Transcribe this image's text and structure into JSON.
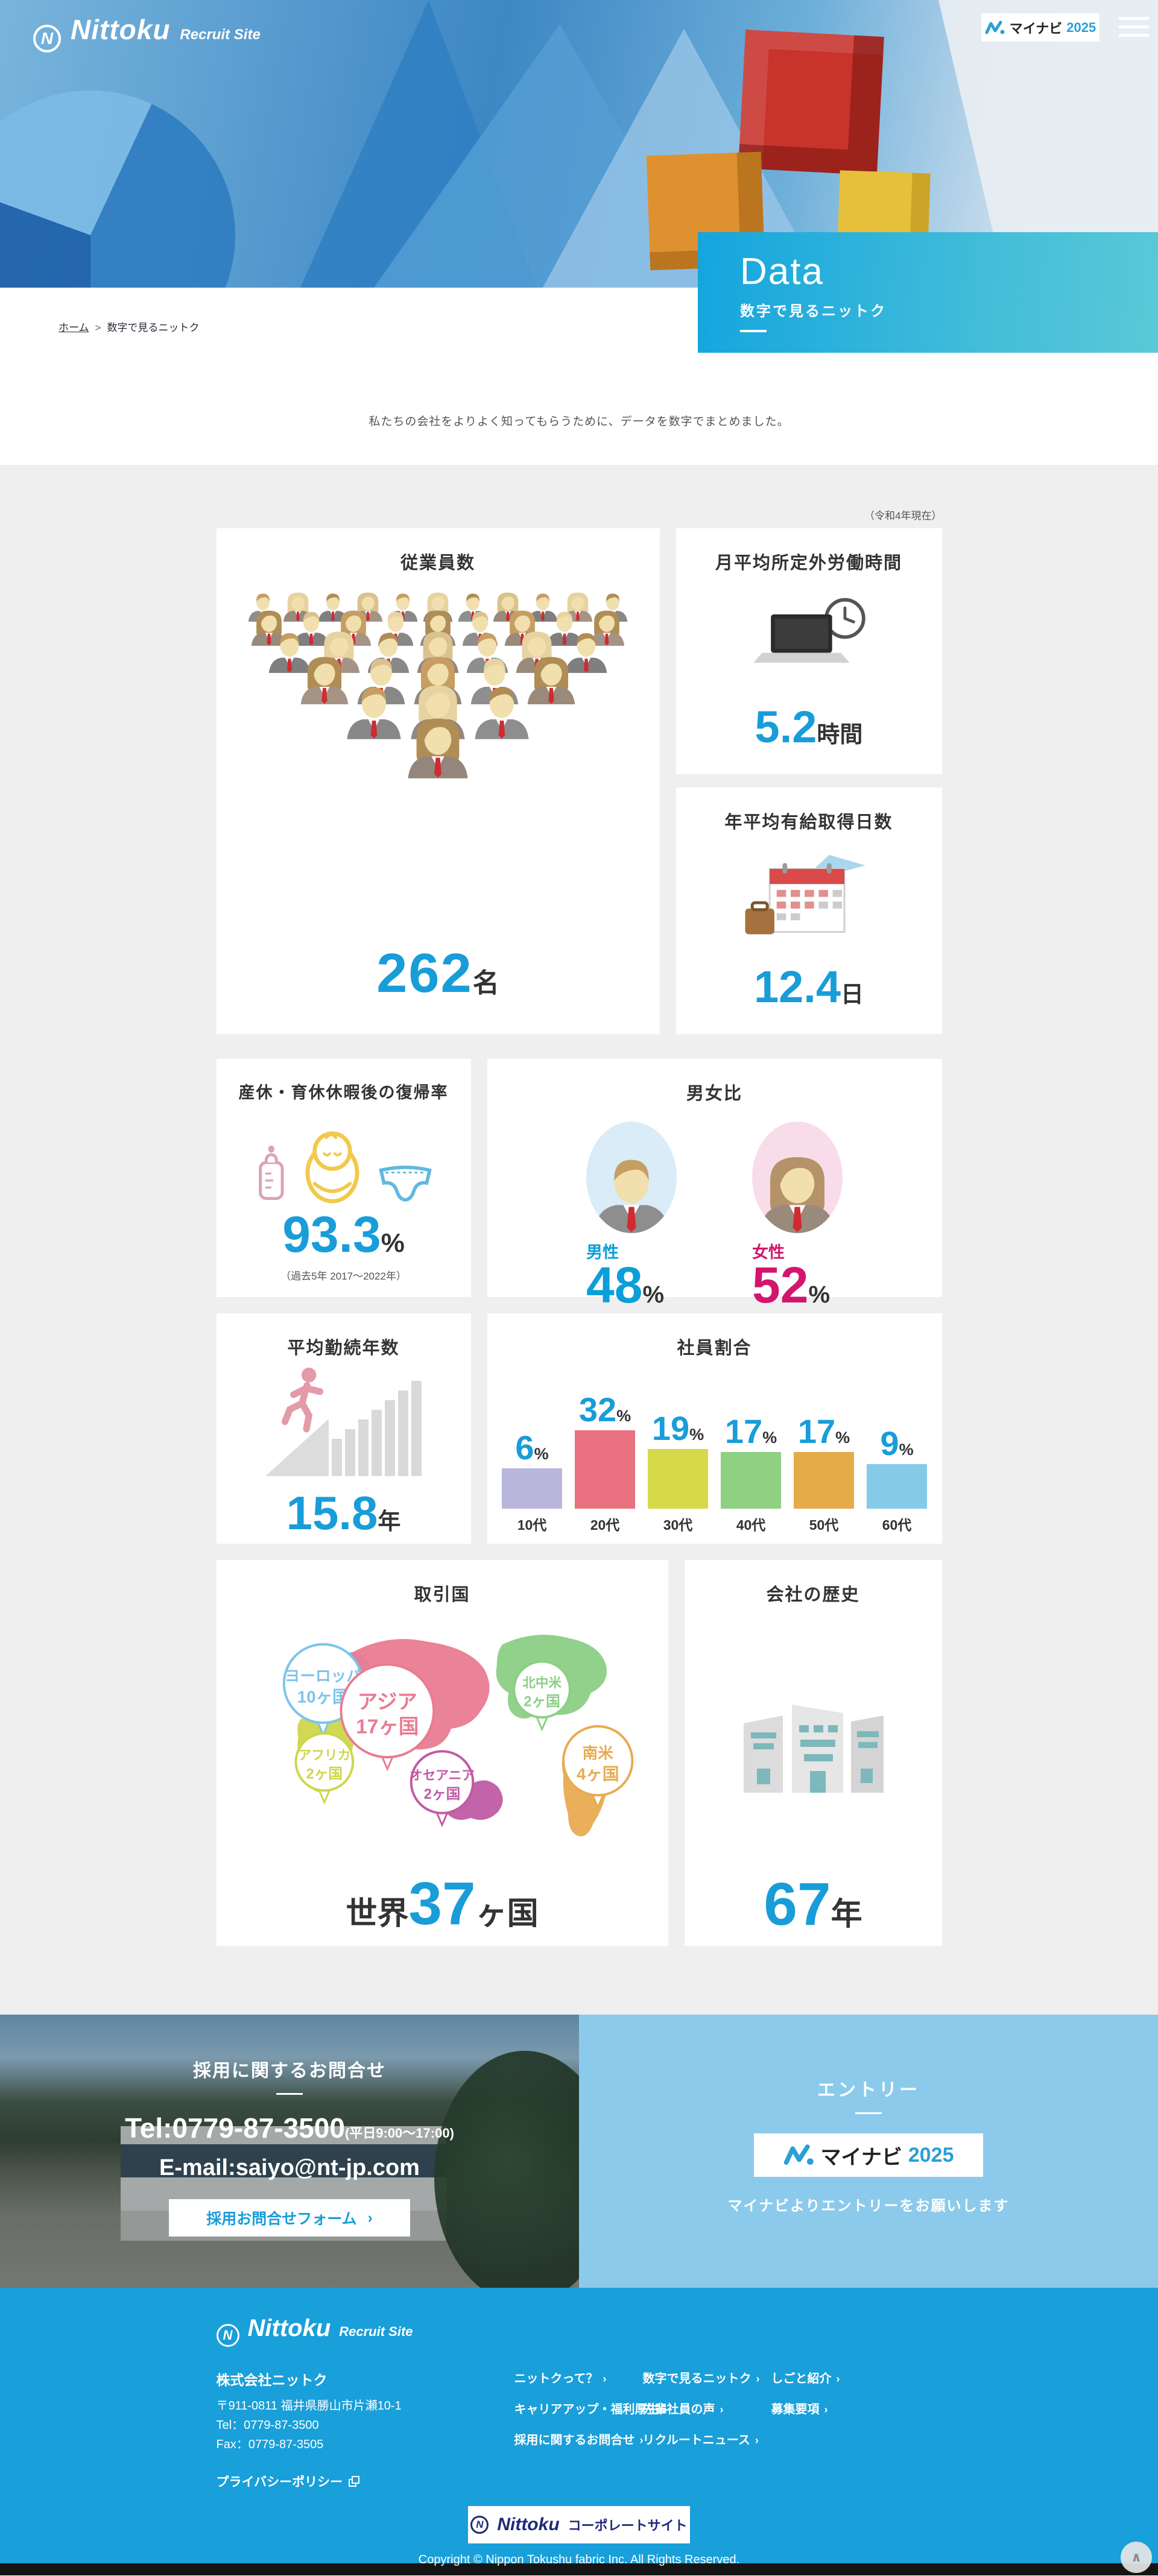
{
  "header": {
    "logo": "Nittoku",
    "logo_sub": "Recruit Site",
    "emblem": "N",
    "mynavi_badge": {
      "brand": "マイナビ",
      "year": "2025"
    }
  },
  "hero": {
    "title": "Data",
    "subtitle": "数字で見るニットク"
  },
  "breadcrumb": {
    "home": "ホーム",
    "separator": ">",
    "current": "数字で見るニットク"
  },
  "intro": "私たちの会社をよりよく知ってもらうために、データを数字でまとめました。",
  "stats_note": "（令和4年現在）",
  "cards": {
    "employees": {
      "title": "従業員数",
      "value": "262",
      "unit": "名",
      "pyramid_rows": [
        11,
        9,
        7,
        5,
        3,
        1
      ]
    },
    "overtime": {
      "title": "月平均所定外労働時間",
      "value": "5.2",
      "unit": "時間"
    },
    "paid_leave": {
      "title": "年平均有給取得日数",
      "value": "12.4",
      "unit": "日"
    },
    "return_rate": {
      "title": "産休・育休休暇後の復帰率",
      "value": "93.3",
      "unit": "%",
      "note": "（過去5年 2017〜2022年）"
    },
    "gender": {
      "title": "男女比",
      "male_label": "男性",
      "male_value": "48",
      "female_label": "女性",
      "female_value": "52",
      "percent": "%"
    },
    "tenure": {
      "title": "平均勤続年数",
      "value": "15.8",
      "unit": "年"
    },
    "age_ratio": {
      "title": "社員割合"
    },
    "countries": {
      "title": "取引国",
      "total_prefix": "世界",
      "total_value": "37",
      "total_suffix": "ヶ国"
    },
    "history": {
      "title": "会社の歴史",
      "value": "67",
      "unit": "年"
    }
  },
  "chart_data": [
    {
      "type": "bar",
      "title": "社員割合",
      "categories": [
        "10代",
        "20代",
        "30代",
        "40代",
        "50代",
        "60代"
      ],
      "values": [
        6,
        32,
        19,
        17,
        17,
        9
      ],
      "unit": "%",
      "colors": [
        "#b9b6dc",
        "#e9707f",
        "#d5d94a",
        "#8fd083",
        "#e6ab49",
        "#85cbe9"
      ],
      "value_color": "#189dd9",
      "ylabel": "",
      "xlabel": "",
      "grid": false,
      "legend": "none"
    },
    {
      "type": "map",
      "title": "取引国",
      "regions": [
        {
          "name": "ヨーロッパ",
          "count": "10ヶ国",
          "color": "#7cc4ea"
        },
        {
          "name": "アジア",
          "count": "17ヶ国",
          "color": "#e97b92"
        },
        {
          "name": "アフリカ",
          "count": "2ヶ国",
          "color": "#cdd64b"
        },
        {
          "name": "オセアニア",
          "count": "2ヶ国",
          "color": "#c05ba4"
        },
        {
          "name": "北中米",
          "count": "2ヶ国",
          "color": "#8ccf85"
        },
        {
          "name": "南米",
          "count": "4ヶ国",
          "color": "#e8ab51"
        }
      ],
      "total": "世界37ヶ国"
    }
  ],
  "contact": {
    "heading": "採用に関するお問合せ",
    "tel": "Tel:0779-87-3500",
    "tel_note": "(平日9:00〜17:00)",
    "email": "E-mail:saiyo@nt-jp.com",
    "form_button": "採用お問合せフォーム",
    "entry_heading": "エントリー",
    "entry_note": "マイナビよりエントリーをお願いします"
  },
  "footer": {
    "company": "株式会社ニットク",
    "address": "〒911-0811 福井県勝山市片瀬10-1",
    "tel": "Tel：0779-87-3500",
    "fax": "Fax：0779-87-3505",
    "privacy": "プライバシーポリシー",
    "nav": [
      [
        "ニットクって？",
        "キャリアアップ・福利厚生",
        "採用に関するお問合せ"
      ],
      [
        "数字で見るニットク",
        "先輩社員の声",
        "リクルートニュース"
      ],
      [
        "しごと紹介",
        "募集要項"
      ]
    ],
    "corporate_label": "コーポレートサイト",
    "copyright": "Copyright © Nippon Tokushu fabric Inc. All Rights Reserved."
  },
  "glyphs": {
    "chevron": "›",
    "up_arrow": "∧"
  }
}
